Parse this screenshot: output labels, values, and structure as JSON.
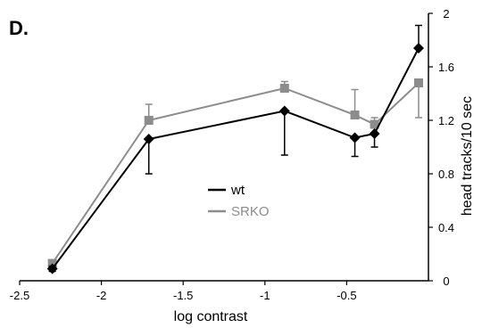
{
  "panel_label": "D.",
  "chart_data": {
    "type": "line",
    "xlabel": "log contrast",
    "ylabel": "head tracks/10 sec",
    "xlim": [
      -2.5,
      0
    ],
    "ylim": [
      0,
      2
    ],
    "x_ticks": [
      -2.5,
      -2,
      -1.5,
      -1,
      -0.5
    ],
    "x_tick_labels": [
      "-2.5",
      "-2",
      "-1.5",
      "-1",
      "-0.5"
    ],
    "y_ticks": [
      0,
      0.4,
      0.8,
      1.2,
      1.6,
      2
    ],
    "y_tick_labels": [
      "0",
      "0.4",
      "0.8",
      "1.2",
      "1.6",
      "2"
    ],
    "y_axis_side": "right",
    "grid": false,
    "legend_position": "center",
    "series": [
      {
        "name": "wt",
        "color": "#000000",
        "marker": "diamond",
        "x": [
          -2.3,
          -1.71,
          -0.88,
          -0.45,
          -0.33,
          -0.06
        ],
        "y": [
          0.09,
          1.06,
          1.27,
          1.07,
          1.1,
          1.74
        ],
        "err_low": [
          0.02,
          0.26,
          0.33,
          0.14,
          0.1,
          0.0
        ],
        "err_high": [
          0.02,
          0.0,
          0.0,
          0.0,
          0.0,
          0.17
        ]
      },
      {
        "name": "SRKO",
        "color": "#8c8c8c",
        "marker": "square",
        "x": [
          -2.3,
          -1.71,
          -0.88,
          -0.45,
          -0.33,
          -0.06
        ],
        "y": [
          0.13,
          1.2,
          1.44,
          1.24,
          1.17,
          1.48
        ],
        "err_low": [
          0.02,
          0.0,
          0.0,
          0.0,
          0.0,
          0.26
        ],
        "err_high": [
          0.02,
          0.12,
          0.05,
          0.19,
          0.05,
          0.0
        ]
      }
    ]
  }
}
